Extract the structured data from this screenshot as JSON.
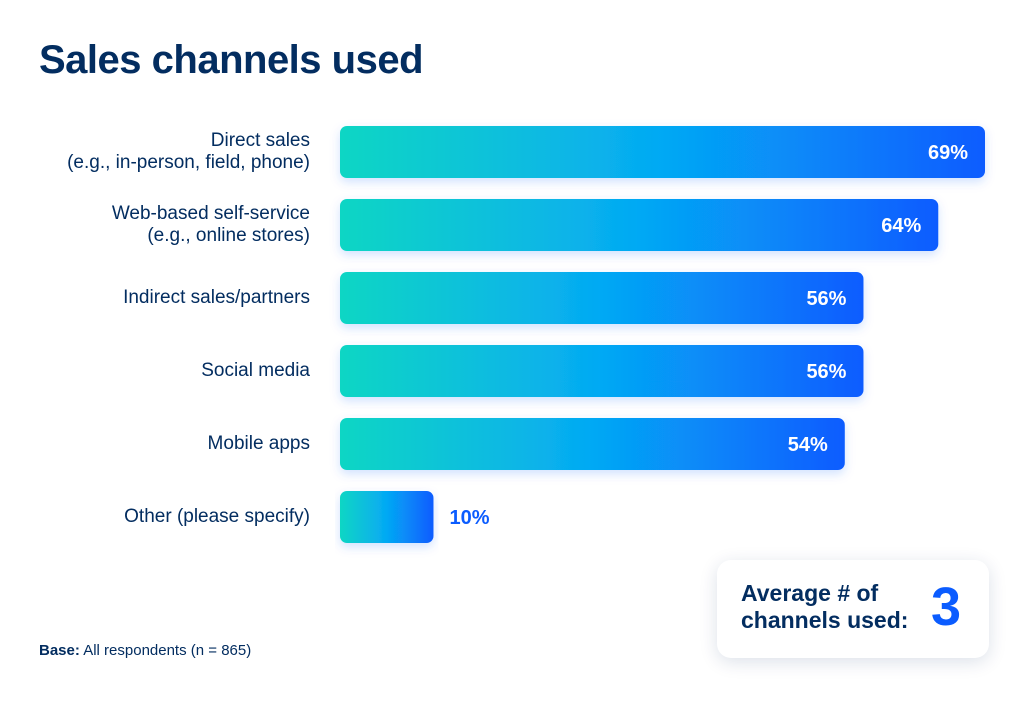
{
  "title": "Sales channels used",
  "chart_data": {
    "type": "bar",
    "orientation": "horizontal",
    "categories": [
      [
        "Direct sales",
        "(e.g., in-person, field, phone)"
      ],
      [
        "Web-based self-service",
        "(e.g., online stores)"
      ],
      [
        "Indirect sales/partners"
      ],
      [
        "Social media"
      ],
      [
        "Mobile apps"
      ],
      [
        "Other (please specify)"
      ]
    ],
    "values": [
      69,
      64,
      56,
      56,
      54,
      10
    ],
    "value_labels": [
      "69%",
      "64%",
      "56%",
      "56%",
      "54%",
      "10%"
    ],
    "unit": "%",
    "xlim": [
      0,
      69
    ],
    "grid": false,
    "colors": {
      "bar_start": "#11d6c4",
      "bar_mid": "#05a9f4",
      "bar_end": "#0b5cff",
      "label_inside": "#ffffff",
      "label_outside": "#0b5cff"
    }
  },
  "summary": {
    "label": "Average # of channels used:",
    "value": "3"
  },
  "base_note": {
    "prefix": "Base:",
    "text": "All respondents (n = 865)"
  }
}
